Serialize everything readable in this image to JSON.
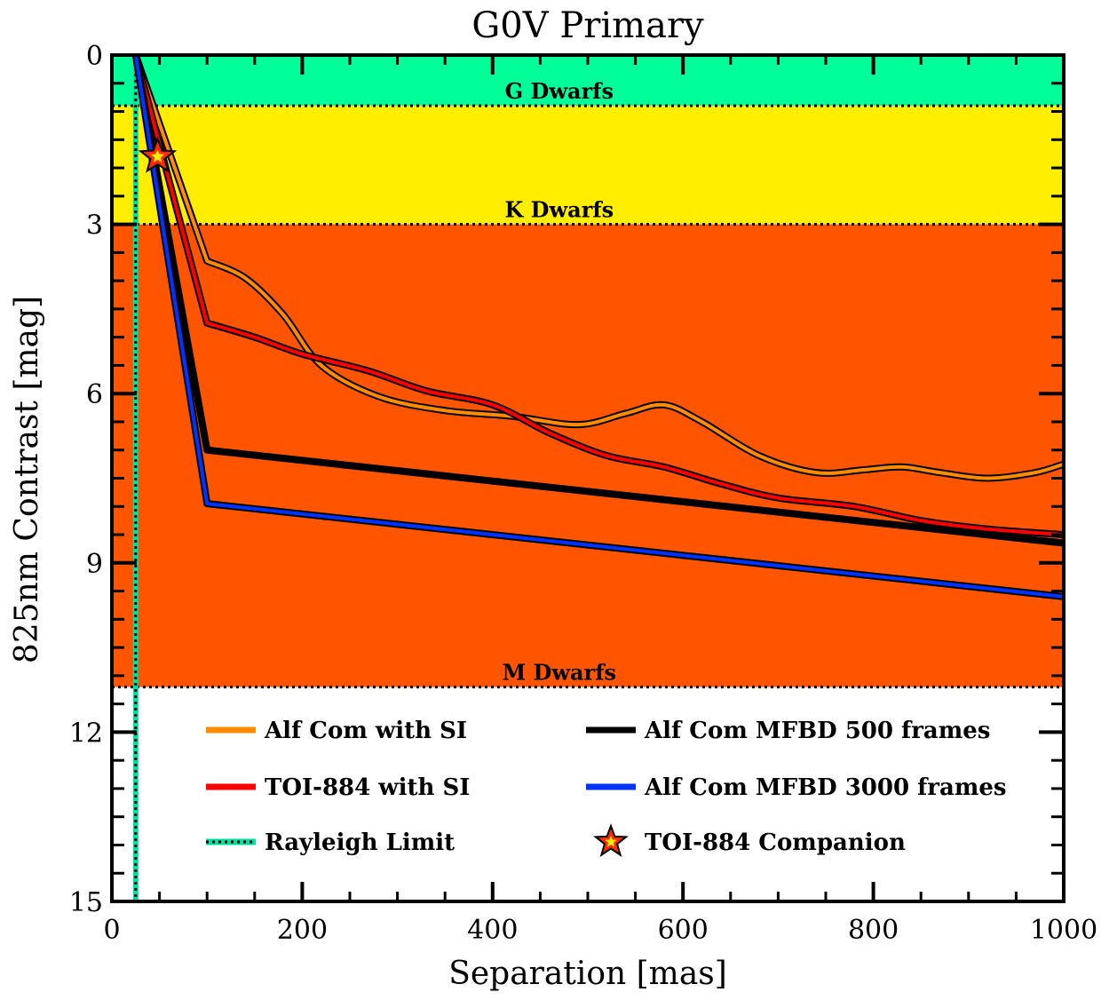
{
  "chart_data": {
    "type": "line",
    "title": "G0V Primary",
    "xlabel": "Separation [mas]",
    "ylabel": "825nm Contrast [mag]",
    "xlim": [
      0,
      1000
    ],
    "ylim": [
      0,
      15
    ],
    "y_inverted": true,
    "x_ticks": [
      0,
      200,
      400,
      600,
      800,
      1000
    ],
    "x_tick_labels": [
      "0",
      "200",
      "400",
      "600",
      "800",
      "1000"
    ],
    "y_ticks": [
      0,
      3,
      6,
      9,
      12,
      15
    ],
    "y_tick_labels": [
      "0",
      "3",
      "6",
      "9",
      "12",
      "15"
    ],
    "bands": [
      {
        "label": "G Dwarfs",
        "y_range": [
          0,
          0.9
        ],
        "color": "#00ff99"
      },
      {
        "label": "K Dwarfs",
        "y_range": [
          0.9,
          3.0
        ],
        "color": "#ffee00"
      },
      {
        "label": "M Dwarfs",
        "y_range": [
          3.0,
          11.2
        ],
        "color": "#ff5500"
      }
    ],
    "rayleigh_limit": {
      "name": "Rayleigh  Limit",
      "x": 25,
      "color": "#00e0a0"
    },
    "series": [
      {
        "name": "Alf Com with SI",
        "color": "#ff8c00",
        "outline": true,
        "x": [
          25,
          100,
          140,
          180,
          220,
          280,
          350,
          420,
          490,
          540,
          580,
          620,
          680,
          740,
          790,
          830,
          870,
          920,
          970,
          1000
        ],
        "y": [
          0,
          3.65,
          3.95,
          4.6,
          5.5,
          6.05,
          6.3,
          6.4,
          6.55,
          6.35,
          6.2,
          6.5,
          7.1,
          7.4,
          7.35,
          7.3,
          7.4,
          7.5,
          7.4,
          7.25
        ]
      },
      {
        "name": "TOI-884 with SI",
        "color": "#ff0000",
        "outline": true,
        "x": [
          25,
          100,
          150,
          200,
          270,
          330,
          400,
          460,
          520,
          580,
          640,
          700,
          780,
          850,
          920,
          1000
        ],
        "y": [
          0,
          4.75,
          5.0,
          5.3,
          5.6,
          5.95,
          6.2,
          6.7,
          7.1,
          7.3,
          7.6,
          7.85,
          8.0,
          8.25,
          8.4,
          8.5
        ]
      },
      {
        "name": "Alf Com MFBD 500 frames",
        "color": "#000000",
        "outline": false,
        "x": [
          25,
          100,
          1000
        ],
        "y": [
          0,
          7.0,
          8.65
        ]
      },
      {
        "name": "Alf Com MFBD 3000 frames",
        "color": "#0033ff",
        "outline": true,
        "x": [
          25,
          100,
          1000
        ],
        "y": [
          0,
          7.95,
          9.6
        ]
      }
    ],
    "markers": [
      {
        "name": "TOI-884 Companion",
        "shape": "star",
        "x": 48,
        "y": 1.8,
        "color": "#ff2a00",
        "fill_inner": "#ffee00"
      }
    ],
    "legend": {
      "placement": "bottom",
      "entries": [
        "Alf Com with SI",
        "TOI-884 with SI",
        "Rayleigh  Limit",
        "Alf Com MFBD 500 frames",
        "Alf Com MFBD 3000 frames",
        "TOI-884 Companion"
      ]
    }
  }
}
